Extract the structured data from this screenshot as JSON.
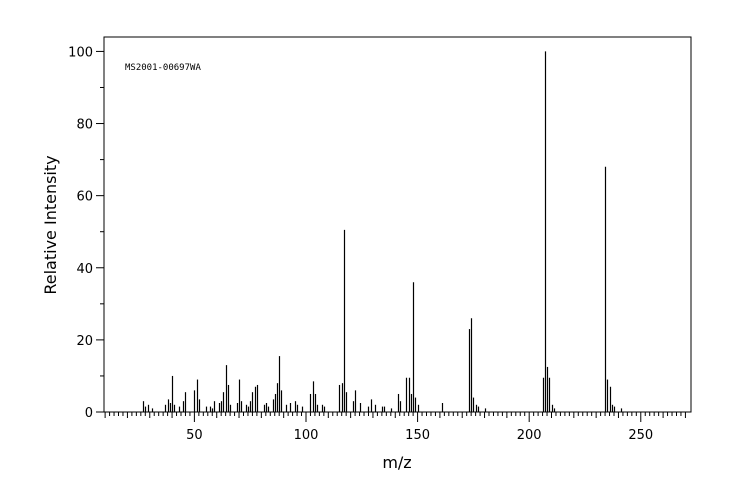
{
  "chart_data": {
    "type": "bar",
    "title": "",
    "annotation": "MS2001-00697WA",
    "xlabel": "m/z",
    "ylabel": "Relative Intensity",
    "xlim": [
      10,
      272
    ],
    "ylim": [
      0,
      105
    ],
    "x_ticks": [
      50,
      100,
      150,
      200,
      250
    ],
    "y_ticks": [
      0,
      20,
      40,
      60,
      80,
      100
    ],
    "bar_color": "#000000",
    "series": [
      {
        "x": [
          27,
          28,
          29,
          31,
          37,
          38,
          39,
          40,
          41,
          43,
          45,
          46,
          50,
          51,
          52,
          55,
          57,
          58,
          59,
          61,
          62,
          63,
          64,
          65,
          66,
          69,
          70,
          71,
          73,
          74,
          75,
          76,
          77,
          78,
          81,
          82,
          83,
          85,
          86,
          87,
          88,
          89,
          91,
          93,
          95,
          96,
          98,
          102,
          103,
          104,
          105,
          107,
          108,
          115,
          116,
          117,
          118,
          121,
          122,
          124,
          128,
          129,
          131,
          134,
          135,
          138,
          141,
          142,
          145,
          146,
          147,
          148,
          149,
          150,
          161,
          173,
          174,
          175,
          176,
          177,
          180,
          206,
          207,
          208,
          209,
          210,
          211,
          234,
          235,
          236,
          237,
          238,
          241
        ],
        "y": [
          3,
          1.5,
          2,
          1,
          2,
          3.5,
          2.5,
          10,
          2,
          1.5,
          3,
          5.5,
          6,
          9,
          3.5,
          1.5,
          1.5,
          1,
          3,
          2.5,
          3,
          5.5,
          13,
          7.5,
          2,
          2.5,
          9,
          3,
          2,
          1.5,
          3,
          5.5,
          7,
          7.5,
          2,
          2.5,
          1.5,
          3.5,
          5,
          8,
          15.5,
          6,
          2,
          2.5,
          3,
          2,
          1.5,
          5,
          8.5,
          5,
          2,
          2,
          1.5,
          7.5,
          8,
          50.5,
          5.5,
          3,
          6,
          2.5,
          1.5,
          3.5,
          2,
          1.5,
          1.5,
          1,
          5,
          3,
          9.5,
          9.5,
          5,
          36,
          4,
          2,
          2.5,
          23,
          26,
          4,
          2,
          1.5,
          1,
          9.5,
          100,
          12.5,
          9.5,
          2,
          1,
          68,
          9,
          7,
          2,
          1.5,
          1
        ]
      }
    ]
  }
}
